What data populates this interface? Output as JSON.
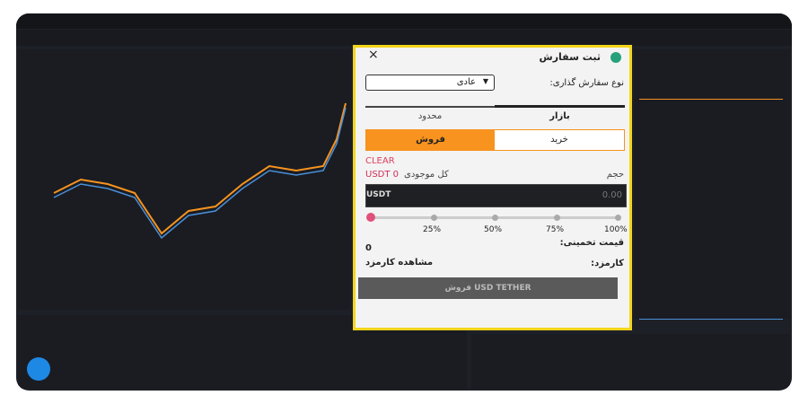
{
  "modal": {
    "title": "ثبت سفارش",
    "close": "×",
    "order_type_label": "نوع سفارش گذاری:",
    "order_type_value": "عادی",
    "tabs": [
      "بازار",
      "محدود"
    ],
    "sides": {
      "buy": "خرید",
      "sell": "فروش"
    },
    "clear": "CLEAR",
    "balance_label": "کل موجودی",
    "balance_value": "USDT 0",
    "volume_label": "حجم",
    "input_unit": "USDT",
    "input_placeholder": "0.00",
    "slider_labels": [
      "25%",
      "50%",
      "75%",
      "100%"
    ],
    "estimate_label": "قیمت تخمینی:",
    "estimate_value": "0",
    "fee_label": "کارمزد:",
    "fee_link": "مشاهده کارمزد",
    "submit": "فروش USD TETHER"
  }
}
